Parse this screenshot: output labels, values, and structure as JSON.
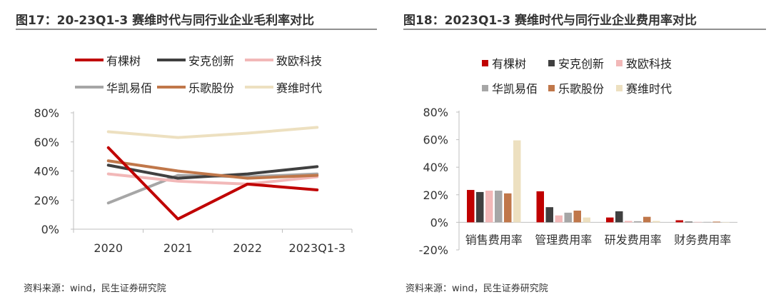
{
  "left": {
    "title": "图17：20-23Q1-3 赛维时代与同行业企业毛利率对比",
    "source": "资料来源：wind，民生证券研究院",
    "legend": [
      {
        "name": "有棵树",
        "color": "#c00000"
      },
      {
        "name": "安克创新",
        "color": "#404040"
      },
      {
        "name": "致欧科技",
        "color": "#f2b8b8"
      },
      {
        "name": "华凯易佰",
        "color": "#a6a6a6"
      },
      {
        "name": "乐歌股份",
        "color": "#c0774a"
      },
      {
        "name": "赛维时代",
        "color": "#ede0c0"
      }
    ]
  },
  "right": {
    "title": "图18：2023Q1-3 赛维时代与同行业企业费用率对比",
    "source": "资料来源：wind，民生证券研究院",
    "legend": [
      {
        "name": "有棵树",
        "color": "#c00000"
      },
      {
        "name": "安克创新",
        "color": "#404040"
      },
      {
        "name": "致欧科技",
        "color": "#f2b8b8"
      },
      {
        "name": "华凯易佰",
        "color": "#a6a6a6"
      },
      {
        "name": "乐歌股份",
        "color": "#c0774a"
      },
      {
        "name": "赛维时代",
        "color": "#ede0c0"
      }
    ]
  },
  "chart_data": [
    {
      "type": "line",
      "title": "图17：20-23Q1-3 赛维时代与同行业企业毛利率对比",
      "categories": [
        "2020",
        "2021",
        "2022",
        "2023Q1-3"
      ],
      "yticks": [
        "0%",
        "20%",
        "40%",
        "60%",
        "80%"
      ],
      "ylim": [
        0,
        80
      ],
      "series": [
        {
          "name": "有棵树",
          "color": "#c00000",
          "values": [
            56,
            7,
            31,
            27
          ]
        },
        {
          "name": "安克创新",
          "color": "#404040",
          "values": [
            44,
            35,
            38,
            43
          ]
        },
        {
          "name": "致欧科技",
          "color": "#f2b8b8",
          "values": [
            38,
            33,
            31,
            36
          ]
        },
        {
          "name": "华凯易佰",
          "color": "#a6a6a6",
          "values": [
            18,
            37,
            36,
            38
          ]
        },
        {
          "name": "乐歌股份",
          "color": "#c0774a",
          "values": [
            47,
            40,
            35,
            37
          ]
        },
        {
          "name": "赛维时代",
          "color": "#ede0c0",
          "values": [
            67,
            63,
            66,
            70
          ]
        }
      ]
    },
    {
      "type": "bar",
      "title": "图18：2023Q1-3 赛维时代与同行业企业费用率对比",
      "categories": [
        "销售费用率",
        "管理费用率",
        "研发费用率",
        "财务费用率"
      ],
      "yticks": [
        "-20%",
        "0%",
        "20%",
        "40%",
        "60%",
        "80%"
      ],
      "ylim": [
        -20,
        80
      ],
      "series": [
        {
          "name": "有棵树",
          "color": "#c00000",
          "values": [
            23.5,
            22.5,
            3.5,
            1.5
          ]
        },
        {
          "name": "安克创新",
          "color": "#404040",
          "values": [
            22,
            11,
            8,
            0.5
          ]
        },
        {
          "name": "致欧科技",
          "color": "#f2b8b8",
          "values": [
            23,
            5,
            1,
            0.3
          ]
        },
        {
          "name": "华凯易佰",
          "color": "#a6a6a6",
          "values": [
            23,
            7,
            0.8,
            0.3
          ]
        },
        {
          "name": "乐歌股份",
          "color": "#c0774a",
          "values": [
            21,
            8.5,
            4,
            0.5
          ]
        },
        {
          "name": "赛维时代",
          "color": "#ede0c0",
          "values": [
            59.5,
            3.5,
            1,
            0.2
          ]
        }
      ]
    }
  ]
}
